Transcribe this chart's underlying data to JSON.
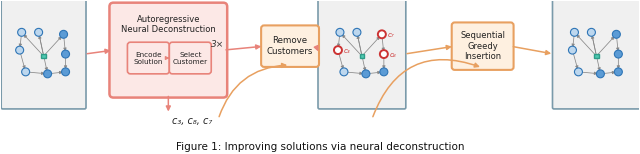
{
  "figure_bg": "#ffffff",
  "box_border_gray": "#7a9aaa",
  "box_fill_gray": "#f0f0f0",
  "box_border_red": "#e8837a",
  "box_fill_red": "#fce8e6",
  "box_border_orange": "#e8a060",
  "box_fill_orange": "#fef0e0",
  "arrow_color_dark": "#888888",
  "arrow_color_red": "#e8837a",
  "arrow_color_orange": "#e8a060",
  "node_blue_fill": "#5b9bd5",
  "node_blue_edge": "#2e75b6",
  "node_blue_fill2": "#bdd7ee",
  "node_red_fill": "#ffffff",
  "node_red_edge": "#cc3333",
  "depot_fill": "#4ec9b0",
  "depot_edge": "#2e9c88",
  "label_c3c8c7": "c₃, c₈, c₇",
  "label_3x": "3×",
  "label_autoregressive": "Autoregressive\nNeural Deconstruction",
  "label_encode": "Encode\nSolution",
  "label_select": "Select\nCustomer",
  "label_remove": "Remove\nCustomers",
  "label_sequential": "Sequential\nGreedy\nInsertion",
  "caption_text": "Figure 1: Improving solutions via neural deconstruction"
}
